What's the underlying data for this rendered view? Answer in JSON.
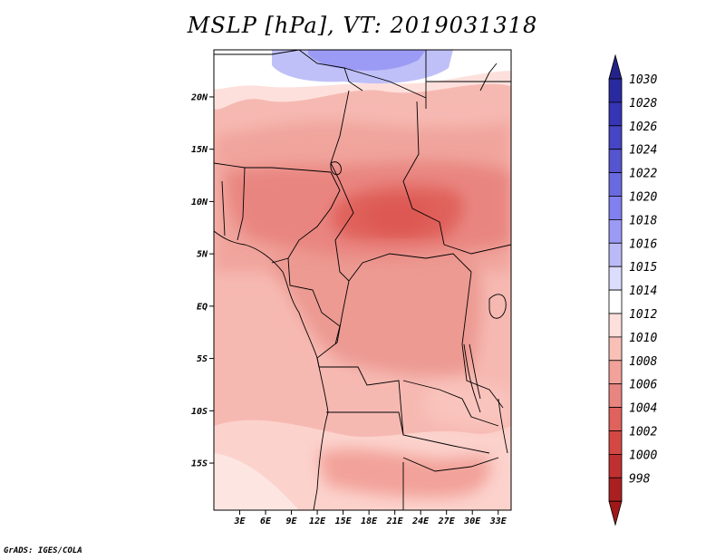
{
  "title": "MSLP [hPa], VT: 2019031318",
  "credit": "GrADS: IGES/COLA",
  "map": {
    "lon_range": [
      0,
      34.5
    ],
    "lat_range": [
      -19.5,
      24.5
    ],
    "lat_ticks": [
      {
        "value": 20,
        "label": "20N"
      },
      {
        "value": 15,
        "label": "15N"
      },
      {
        "value": 10,
        "label": "10N"
      },
      {
        "value": 5,
        "label": "5N"
      },
      {
        "value": 0,
        "label": "EQ"
      },
      {
        "value": -5,
        "label": "5S"
      },
      {
        "value": -10,
        "label": "10S"
      },
      {
        "value": -15,
        "label": "15S"
      }
    ],
    "lon_ticks": [
      {
        "value": 3,
        "label": "3E"
      },
      {
        "value": 6,
        "label": "6E"
      },
      {
        "value": 9,
        "label": "9E"
      },
      {
        "value": 12,
        "label": "12E"
      },
      {
        "value": 15,
        "label": "15E"
      },
      {
        "value": 18,
        "label": "18E"
      },
      {
        "value": 21,
        "label": "21E"
      },
      {
        "value": 24,
        "label": "24E"
      },
      {
        "value": 27,
        "label": "27E"
      },
      {
        "value": 30,
        "label": "30E"
      },
      {
        "value": 33,
        "label": "33E"
      }
    ]
  },
  "colorbar": {
    "levels": [
      "1030",
      "1028",
      "1026",
      "1024",
      "1022",
      "1020",
      "1018",
      "1016",
      "1015",
      "1014",
      "1012",
      "1010",
      "1008",
      "1006",
      "1004",
      "1002",
      "1000",
      "998"
    ],
    "colors": [
      "#2a2aa0",
      "#3535b5",
      "#4545c5",
      "#5555d0",
      "#6a6ae0",
      "#8080ee",
      "#9b9bf5",
      "#babaf8",
      "#dcdcfc",
      "#ffffff",
      "#fde0dc",
      "#f9c0b8",
      "#f2a29a",
      "#e98580",
      "#e0625c",
      "#d44844",
      "#c03030",
      "#aa2020"
    ],
    "top_color": "#22228a",
    "bottom_color": "#a01818"
  }
}
